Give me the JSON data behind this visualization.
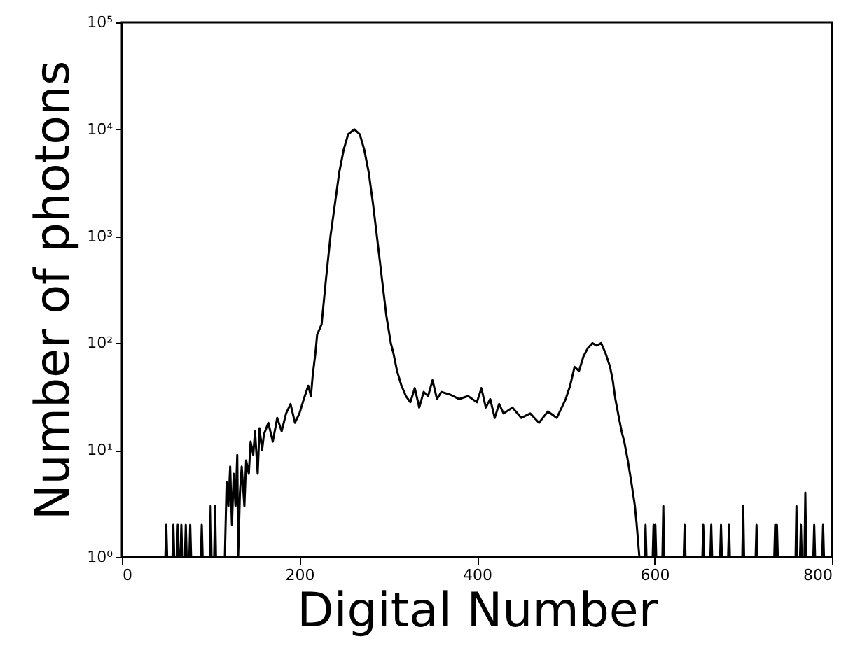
{
  "chart_data": {
    "type": "line",
    "xlabel": "Digital Number",
    "ylabel": "Number of photons",
    "log": "y",
    "grid": false,
    "marker": "none",
    "line_style": "solid",
    "xlim": [
      0,
      800
    ],
    "xticks": [
      0,
      200,
      400,
      600,
      800
    ],
    "ylim": [
      1,
      100000
    ],
    "yticks": [
      {
        "value": 1,
        "label": "10⁰"
      },
      {
        "value": 10,
        "label": "10¹"
      },
      {
        "value": 100,
        "label": "10²"
      },
      {
        "value": 1000,
        "label": "10³"
      },
      {
        "value": 10000,
        "label": "10⁴"
      },
      {
        "value": 100000,
        "label": "10⁵"
      }
    ],
    "series": [
      {
        "color": "#000000",
        "x": [
          0,
          49,
          50,
          51,
          57,
          58,
          59,
          62,
          63,
          64,
          66,
          67,
          68,
          71,
          72,
          73,
          76,
          77,
          78,
          89,
          90,
          91,
          99,
          100,
          101,
          104,
          105,
          106,
          112,
          116,
          118,
          120,
          122,
          124,
          126,
          128,
          130,
          131,
          133,
          135,
          138,
          140,
          143,
          145,
          148,
          150,
          153,
          155,
          158,
          160,
          165,
          170,
          175,
          180,
          185,
          190,
          195,
          200,
          205,
          210,
          213,
          215,
          218,
          220,
          225,
          230,
          235,
          240,
          245,
          250,
          255,
          262,
          268,
          273,
          278,
          283,
          288,
          293,
          298,
          303,
          306,
          310,
          315,
          320,
          325,
          330,
          335,
          340,
          345,
          350,
          355,
          360,
          370,
          380,
          390,
          400,
          405,
          410,
          415,
          420,
          425,
          430,
          440,
          450,
          460,
          470,
          480,
          490,
          500,
          505,
          510,
          515,
          520,
          525,
          530,
          535,
          540,
          545,
          550,
          553,
          556,
          560,
          563,
          566,
          570,
          574,
          578,
          580,
          583,
          589,
          590,
          591,
          598,
          599,
          600,
          601,
          602,
          609,
          610,
          611,
          633,
          634,
          635,
          654,
          655,
          656,
          663,
          664,
          665,
          674,
          675,
          676,
          683,
          684,
          685,
          699,
          700,
          701,
          714,
          715,
          716,
          735,
          736,
          737,
          738,
          739,
          759,
          760,
          761,
          764,
          765,
          766,
          769,
          770,
          771,
          779,
          780,
          781,
          789,
          790,
          791,
          800
        ],
        "values": [
          1,
          1,
          2,
          1,
          1,
          2,
          1,
          1,
          2,
          1,
          1,
          2,
          1,
          1,
          2,
          1,
          1,
          2,
          1,
          1,
          2,
          1,
          1,
          3,
          1,
          1,
          3,
          1,
          1,
          1,
          5,
          3,
          7,
          2,
          6,
          3,
          9,
          1,
          4,
          7,
          3,
          8,
          6,
          12,
          9,
          15,
          6,
          16,
          10,
          14,
          18,
          12,
          20,
          15,
          22,
          27,
          18,
          22,
          30,
          40,
          32,
          50,
          80,
          120,
          150,
          400,
          1000,
          2000,
          4000,
          6500,
          9000,
          10000,
          9000,
          6500,
          4000,
          2000,
          900,
          400,
          180,
          100,
          80,
          55,
          40,
          32,
          28,
          38,
          25,
          35,
          32,
          45,
          30,
          35,
          33,
          30,
          32,
          28,
          38,
          25,
          30,
          20,
          27,
          22,
          25,
          20,
          22,
          18,
          23,
          20,
          30,
          40,
          60,
          55,
          75,
          90,
          100,
          95,
          100,
          80,
          60,
          45,
          30,
          20,
          15,
          12,
          8,
          5,
          3,
          2,
          1,
          1,
          2,
          1,
          1,
          2,
          1,
          2,
          1,
          1,
          3,
          1,
          1,
          2,
          1,
          1,
          2,
          1,
          1,
          2,
          1,
          1,
          2,
          1,
          1,
          2,
          1,
          1,
          3,
          1,
          1,
          2,
          1,
          1,
          2,
          1,
          2,
          1,
          1,
          3,
          1,
          1,
          2,
          1,
          1,
          4,
          1,
          1,
          2,
          1,
          1,
          2,
          1,
          1
        ]
      }
    ]
  }
}
